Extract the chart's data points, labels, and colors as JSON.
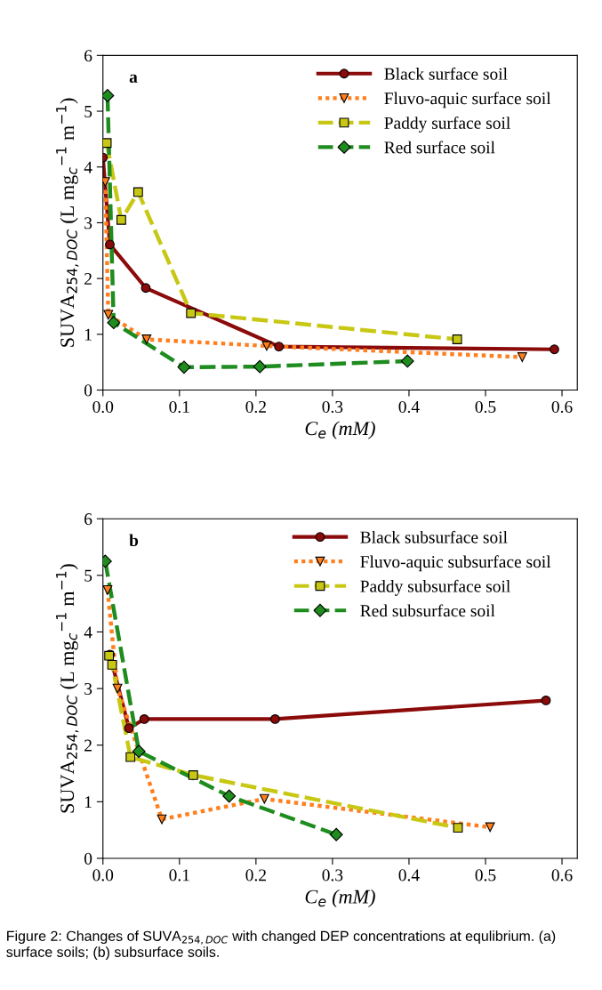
{
  "chart_data": [
    {
      "type": "line",
      "annotations": [
        "a"
      ],
      "xlabel": "C$_{e}$ (mM)",
      "ylabel": "SUVA$_{254,DOC}$ (L mg$_{c}$$^{−1}$ m$^{−1}$)",
      "xlim": [
        0,
        0.62
      ],
      "ylim": [
        0,
        6
      ],
      "xticks": [
        {
          "value": 0,
          "label": "0.0"
        },
        {
          "value": 0.1,
          "label": "0.1"
        },
        {
          "value": 0.2,
          "label": "0.2"
        },
        {
          "value": 0.3,
          "label": "0.3"
        },
        {
          "value": 0.4,
          "label": "0.4"
        },
        {
          "value": 0.5,
          "label": "0.5"
        },
        {
          "value": 0.6,
          "label": "0.6"
        }
      ],
      "yticks": [
        0,
        1,
        2,
        3,
        4,
        5,
        6
      ],
      "grid": false,
      "legend": "top right",
      "series": [
        {
          "name": "Black surface soil",
          "color": "#8b0a0a",
          "marker": "circle",
          "line_style": "solid",
          "x": [
            0.0,
            0.009,
            0.056,
            0.23,
            0.59
          ],
          "values": [
            4.17,
            2.61,
            1.83,
            0.78,
            0.73
          ]
        },
        {
          "name": "Fluvo-aquic surface soil",
          "color": "#ff7f1e",
          "marker": "triangle",
          "line_style": "dotted",
          "x": [
            0.003,
            0.007,
            0.057,
            0.214,
            0.548
          ],
          "values": [
            3.73,
            1.35,
            0.91,
            0.79,
            0.59
          ]
        },
        {
          "name": "Paddy surface soil",
          "color": "#c8c814",
          "marker": "square",
          "line_style": "dashed",
          "x": [
            0.005,
            0.024,
            0.046,
            0.115,
            0.463
          ],
          "values": [
            4.43,
            3.05,
            3.55,
            1.38,
            0.91
          ]
        },
        {
          "name": "Red surface soil",
          "color": "#1e8c1e",
          "marker": "diamond",
          "line_style": "dashed",
          "x": [
            0.006,
            0.014,
            0.106,
            0.205,
            0.398
          ],
          "values": [
            5.28,
            1.21,
            0.41,
            0.42,
            0.52
          ]
        }
      ]
    },
    {
      "type": "line",
      "annotations": [
        "b",
        "Figure 2: Changes of SUVA$_{254,DOC}$ with changed DEP concentrations at equlibrium. (a) surface soils; (b) subsurface soils."
      ],
      "xlabel": "C$_{e}$ (mM)",
      "ylabel": "SUVA$_{254,DOC}$ (L mg$_{c}$$^{−1}$ m$^{−1}$)",
      "xlim": [
        0,
        0.62
      ],
      "ylim": [
        0,
        6
      ],
      "xticks": [
        {
          "value": 0,
          "label": "0.0"
        },
        {
          "value": 0.1,
          "label": "0.1"
        },
        {
          "value": 0.2,
          "label": "0.2"
        },
        {
          "value": 0.3,
          "label": "0.3"
        },
        {
          "value": 0.4,
          "label": "0.4"
        },
        {
          "value": 0.5,
          "label": "0.5"
        },
        {
          "value": 0.6,
          "label": "0.6"
        }
      ],
      "yticks": [
        0,
        1,
        2,
        3,
        4,
        5,
        6
      ],
      "grid": false,
      "legend": "top right",
      "series": [
        {
          "name": "Black subsurface soil",
          "color": "#8b0a0a",
          "marker": "circle",
          "line_style": "solid",
          "x": [
            0.009,
            0.034,
            0.054,
            0.225,
            0.579
          ],
          "values": [
            3.6,
            2.3,
            2.46,
            2.46,
            2.79
          ]
        },
        {
          "name": "Fluvo-aquic subsurface soil",
          "color": "#ff7f1e",
          "marker": "triangle",
          "line_style": "dotted",
          "x": [
            0.006,
            0.019,
            0.077,
            0.211,
            0.506
          ],
          "values": [
            4.74,
            3.0,
            0.69,
            1.05,
            0.55
          ]
        },
        {
          "name": "Paddy subsurface soil",
          "color": "#c8c814",
          "marker": "square",
          "line_style": "dashed",
          "x": [
            0.008,
            0.012,
            0.036,
            0.118,
            0.464
          ],
          "values": [
            3.58,
            3.42,
            1.79,
            1.47,
            0.54
          ]
        },
        {
          "name": "Red subsurface soil",
          "color": "#1e8c1e",
          "marker": "diamond",
          "line_style": "dashed",
          "x": [
            0.003,
            0.047,
            0.165,
            0.305
          ],
          "values": [
            5.25,
            1.89,
            1.1,
            0.42
          ]
        }
      ]
    }
  ]
}
